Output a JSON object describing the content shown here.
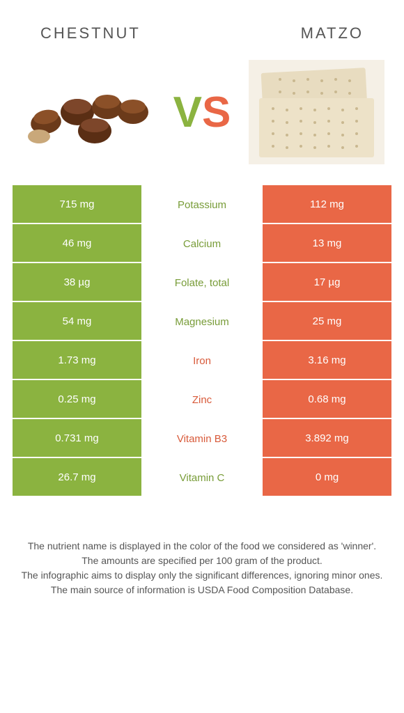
{
  "titles": {
    "left": "CHESTNUT",
    "right": "MATZO"
  },
  "vs": {
    "v": "V",
    "s": "S"
  },
  "colors": {
    "left_bg": "#8bb340",
    "right_bg": "#e96746",
    "left_text": "#789c38",
    "right_text": "#d85a3a"
  },
  "rows": [
    {
      "left": "715 mg",
      "label": "Potassium",
      "right": "112 mg",
      "winner": "left"
    },
    {
      "left": "46 mg",
      "label": "Calcium",
      "right": "13 mg",
      "winner": "left"
    },
    {
      "left": "38 µg",
      "label": "Folate, total",
      "right": "17 µg",
      "winner": "left"
    },
    {
      "left": "54 mg",
      "label": "Magnesium",
      "right": "25 mg",
      "winner": "left"
    },
    {
      "left": "1.73 mg",
      "label": "Iron",
      "right": "3.16 mg",
      "winner": "right"
    },
    {
      "left": "0.25 mg",
      "label": "Zinc",
      "right": "0.68 mg",
      "winner": "right"
    },
    {
      "left": "0.731 mg",
      "label": "Vitamin B3",
      "right": "3.892 mg",
      "winner": "right"
    },
    {
      "left": "26.7 mg",
      "label": "Vitamin C",
      "right": "0 mg",
      "winner": "left"
    }
  ],
  "footnotes": [
    "The nutrient name is displayed in the color of the food we considered as 'winner'.",
    "The amounts are specified per 100 gram of the product.",
    "The infographic aims to display only the significant differences, ignoring minor ones.",
    "The main source of information is USDA Food Composition Database."
  ]
}
